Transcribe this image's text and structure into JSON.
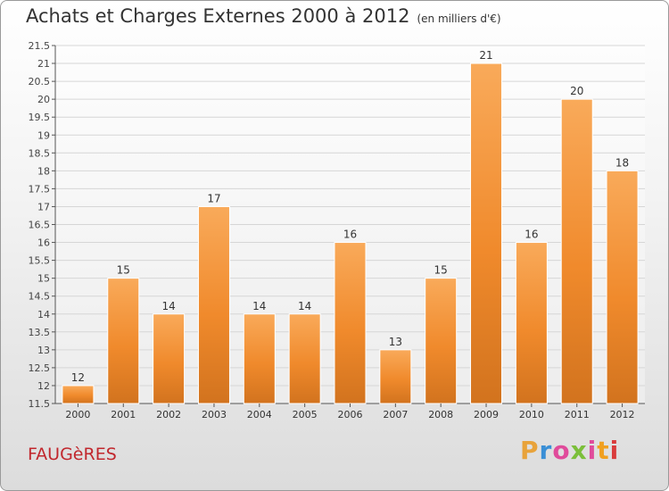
{
  "chart_data": {
    "type": "bar",
    "title": "Achats et Charges Externes 2000 à 2012",
    "subtitle": "(en milliers d'€)",
    "categories": [
      "2000",
      "2001",
      "2002",
      "2003",
      "2004",
      "2005",
      "2006",
      "2007",
      "2008",
      "2009",
      "2010",
      "2011",
      "2012"
    ],
    "values": [
      12,
      15,
      14,
      17,
      14,
      14,
      16,
      13,
      15,
      21,
      16,
      20,
      18
    ],
    "value_labels": [
      "12",
      "15",
      "14",
      "17",
      "14",
      "14",
      "16",
      "13",
      "15",
      "21",
      "16",
      "20",
      "18"
    ],
    "ylim": [
      11.5,
      21.5
    ],
    "yticks": [
      11.5,
      12,
      12.5,
      13,
      13.5,
      14,
      14.5,
      15,
      15.5,
      16,
      16.5,
      17,
      17.5,
      18,
      18.5,
      19,
      19.5,
      20,
      20.5,
      21,
      21.5
    ],
    "ytick_labels": [
      "11.5",
      "12",
      "12.5",
      "13",
      "13.5",
      "14",
      "14.5",
      "15",
      "15.5",
      "16",
      "16.5",
      "17",
      "17.5",
      "18",
      "18.5",
      "19",
      "19.5",
      "20",
      "20.5",
      "21",
      "21.5"
    ],
    "grid": true,
    "bar_color": "#f08a2c",
    "bar_color_top": "#f9aa5a",
    "bar_color_bottom": "#d2731e"
  },
  "footer": {
    "commune": "FAUGèRES",
    "logo_text": "Proxiti",
    "logo_colors": [
      "#e8a33b",
      "#3a8fd6",
      "#e04b9b",
      "#7bbf3a",
      "#e04b9b",
      "#f0a020",
      "#d93c3c"
    ]
  }
}
